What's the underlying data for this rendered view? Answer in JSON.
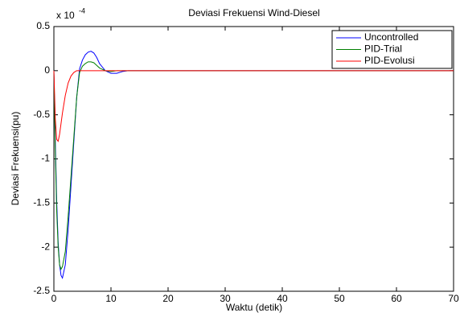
{
  "chart_data": {
    "type": "line",
    "title": "Deviasi Frekuensi Wind-Diesel",
    "x_label": "Waktu (detik)",
    "y_label": "Deviasi Frekuensi(pu)",
    "y_scale": {
      "base": "x 10",
      "exponent": "-4"
    },
    "x": [
      0,
      0.25,
      0.5,
      0.75,
      1,
      1.25,
      1.5,
      2,
      2.5,
      3,
      3.5,
      4,
      4.5,
      5,
      5.5,
      6,
      6.5,
      7,
      7.5,
      8,
      9,
      10,
      11,
      12,
      13,
      15,
      20,
      30,
      40,
      50,
      60,
      70
    ],
    "series": [
      {
        "name": "Uncontrolled",
        "color": "#0000ff",
        "values": [
          0,
          -0.8,
          -1.5,
          -1.95,
          -2.2,
          -2.32,
          -2.35,
          -2.2,
          -1.8,
          -1.3,
          -0.8,
          -0.3,
          0.02,
          0.12,
          0.18,
          0.21,
          0.22,
          0.2,
          0.15,
          0.08,
          0,
          -0.03,
          -0.03,
          -0.01,
          0,
          0,
          0,
          0,
          0,
          0,
          0,
          0
        ]
      },
      {
        "name": "PID-Trial",
        "color": "#008000",
        "values": [
          0,
          -0.9,
          -1.6,
          -2.0,
          -2.2,
          -2.25,
          -2.22,
          -2.05,
          -1.65,
          -1.2,
          -0.75,
          -0.3,
          -0.02,
          0.05,
          0.08,
          0.1,
          0.1,
          0.09,
          0.06,
          0.03,
          0,
          -0.01,
          0,
          0,
          0,
          0,
          0,
          0,
          0,
          0,
          0,
          0
        ]
      },
      {
        "name": "PID-Evolusi",
        "color": "#ff0000",
        "values": [
          0,
          -0.55,
          -0.78,
          -0.8,
          -0.72,
          -0.6,
          -0.48,
          -0.28,
          -0.14,
          -0.06,
          -0.02,
          0,
          0,
          0,
          0,
          0,
          0,
          0,
          0,
          0,
          0,
          0,
          0,
          0,
          0,
          0,
          0,
          0,
          0,
          0,
          0,
          0
        ]
      }
    ],
    "xlim": [
      0,
      70
    ],
    "xticks": [
      0,
      10,
      20,
      30,
      40,
      50,
      60,
      70
    ],
    "ylim": [
      -2.5,
      0.5
    ],
    "yticks": [
      -2.5,
      -2,
      -1.5,
      -1,
      -0.5,
      0,
      0.5
    ],
    "legend": "top-right"
  }
}
